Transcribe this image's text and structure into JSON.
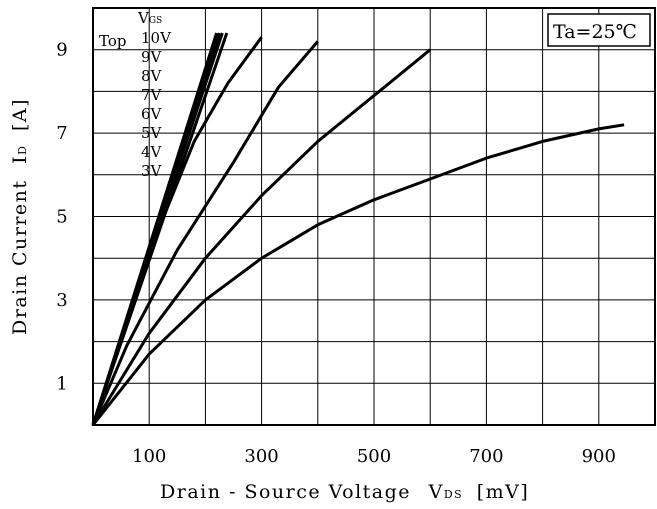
{
  "chart_data": {
    "type": "line",
    "xlabel_main": "Drain - Source Voltage",
    "xlabel_symbol": "V",
    "xlabel_sub": "DS",
    "xlabel_unit": "[mV]",
    "ylabel_main": "Drain Current",
    "ylabel_symbol": "I",
    "ylabel_sub": "D",
    "ylabel_unit": "[A]",
    "xlim": [
      0,
      1000
    ],
    "ylim": [
      0,
      10
    ],
    "x_ticks": [
      100,
      300,
      500,
      700,
      900
    ],
    "y_ticks": [
      1,
      3,
      5,
      7,
      9
    ],
    "grid": true,
    "annotation": "Ta=25℃",
    "legend_header_symbol": "V",
    "legend_header_sub": "GS",
    "legend_prefix": "Top",
    "legend_labels": [
      "10V",
      "9V",
      "8V",
      "7V",
      "6V",
      "5V",
      "4V",
      "3V"
    ],
    "series": [
      {
        "values": [
          [
            0,
            0
          ],
          [
            220,
            9.4
          ]
        ]
      },
      {
        "values": [
          [
            0,
            0
          ],
          [
            225,
            9.4
          ]
        ]
      },
      {
        "values": [
          [
            0,
            0
          ],
          [
            230,
            9.4
          ]
        ]
      },
      {
        "values": [
          [
            0,
            0
          ],
          [
            238,
            9.4
          ]
        ]
      },
      {
        "values": [
          [
            0,
            0
          ],
          [
            60,
            2.5
          ],
          [
            120,
            4.8
          ],
          [
            180,
            6.8
          ],
          [
            240,
            8.2
          ],
          [
            300,
            9.3
          ]
        ]
      },
      {
        "values": [
          [
            0,
            0
          ],
          [
            60,
            1.9
          ],
          [
            150,
            4.2
          ],
          [
            250,
            6.3
          ],
          [
            330,
            8.1
          ],
          [
            400,
            9.2
          ]
        ]
      },
      {
        "values": [
          [
            0,
            0
          ],
          [
            100,
            2.2
          ],
          [
            200,
            4.0
          ],
          [
            300,
            5.5
          ],
          [
            400,
            6.8
          ],
          [
            500,
            7.9
          ],
          [
            600,
            9.0
          ]
        ]
      },
      {
        "values": [
          [
            0,
            0
          ],
          [
            100,
            1.7
          ],
          [
            200,
            3.0
          ],
          [
            300,
            4.0
          ],
          [
            400,
            4.8
          ],
          [
            500,
            5.4
          ],
          [
            600,
            5.9
          ],
          [
            700,
            6.4
          ],
          [
            800,
            6.8
          ],
          [
            900,
            7.1
          ],
          [
            945,
            7.2
          ]
        ]
      }
    ]
  }
}
